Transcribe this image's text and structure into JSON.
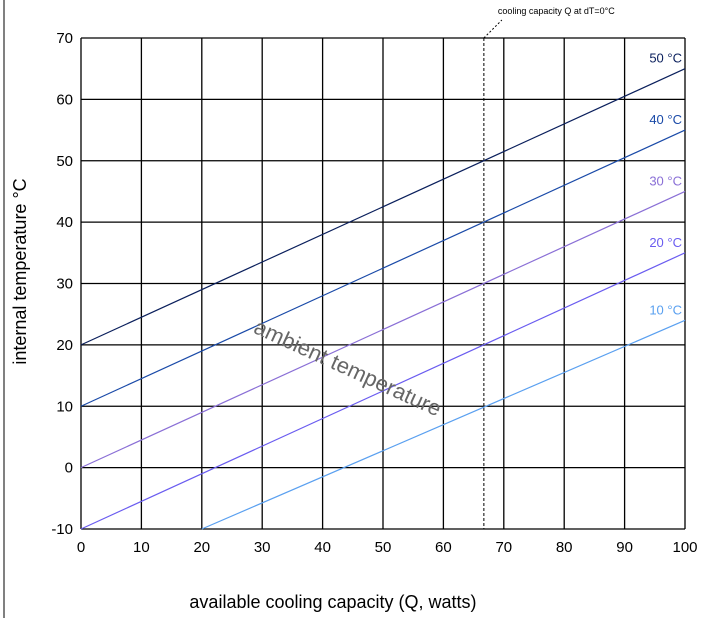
{
  "chart_data": {
    "type": "line",
    "xlabel": "available cooling capacity (Q, watts)",
    "ylabel": "internal temperature °C",
    "xlim": [
      0,
      100
    ],
    "ylim": [
      -10,
      70
    ],
    "x_ticks": [
      "0",
      "10",
      "20",
      "30",
      "40",
      "50",
      "60",
      "70",
      "80",
      "90",
      "100"
    ],
    "y_ticks": [
      "-10",
      "0",
      "10",
      "20",
      "30",
      "40",
      "50",
      "60",
      "70"
    ],
    "grid": true,
    "series": [
      {
        "name": "50 °C",
        "color": "#0a1f5c",
        "x": [
          0,
          100
        ],
        "y": [
          20,
          65
        ]
      },
      {
        "name": "40 °C",
        "color": "#1a4aa8",
        "x": [
          0,
          100
        ],
        "y": [
          10,
          55
        ]
      },
      {
        "name": "30 °C",
        "color": "#8a6fd6",
        "x": [
          0,
          100
        ],
        "y": [
          0,
          45
        ]
      },
      {
        "name": "20 °C",
        "color": "#6a5cf0",
        "x": [
          0,
          100
        ],
        "y": [
          -10,
          35
        ]
      },
      {
        "name": "10 °C",
        "color": "#5aa0f0",
        "x": [
          20,
          100
        ],
        "y": [
          -10,
          24
        ]
      }
    ],
    "reference_line": {
      "x": 66.7,
      "label": "cooling capacity Q at dT=0°C",
      "style": "dashed"
    },
    "annotations": [
      {
        "text": "ambient temperature",
        "x": 35,
        "y": 24
      }
    ]
  }
}
